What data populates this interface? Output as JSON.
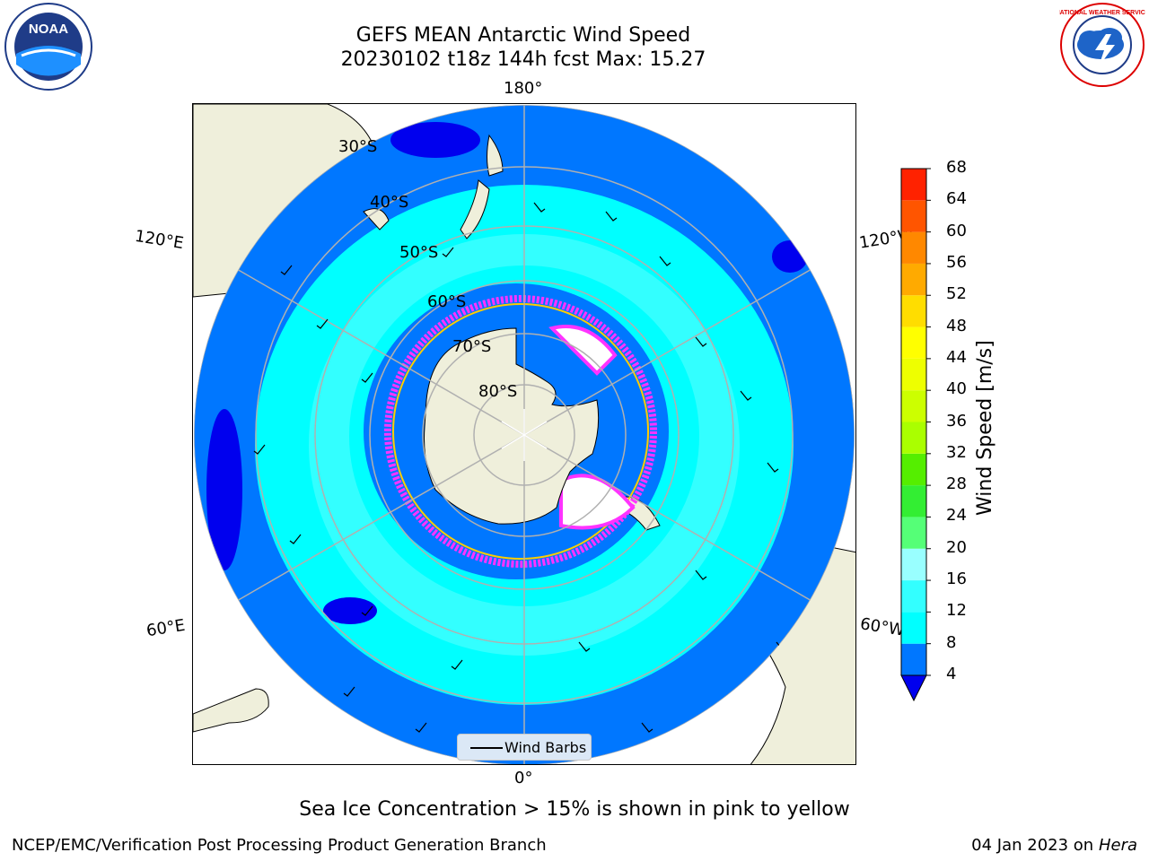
{
  "title": {
    "line1": "GEFS MEAN Antarctic Wind Speed",
    "line2": "20230102 t18z 144h fcst   Max: 15.27"
  },
  "logos": {
    "left": {
      "name": "noaa-logo",
      "text": "NOAA"
    },
    "right": {
      "name": "nws-logo",
      "text": "NATIONAL WEATHER SERVICE"
    }
  },
  "map": {
    "projection": "south-polar-stereographic",
    "longitude_labels": {
      "top": "180°",
      "bottom": "0°",
      "upper_left": "120°E",
      "upper_right": "120°W",
      "lower_left": "60°E",
      "lower_right": "60°W"
    },
    "latitude_labels": [
      "30°S",
      "40°S",
      "50°S",
      "60°S",
      "70°S",
      "80°S"
    ],
    "colors": {
      "land": "#efefdb",
      "ocean_4_8": "#0077ff",
      "ocean_8_12": "#00ffff",
      "ocean_12_16": "#33ffff",
      "ocean_lt_4": "#0000ee",
      "sea_ice_edge": "#ff33ff",
      "grid": "#b0b0b0"
    },
    "legend_label": "Wind Barbs"
  },
  "colorbar": {
    "label": "Wind Speed [m/s]",
    "ticks": [
      "4",
      "8",
      "12",
      "16",
      "20",
      "24",
      "28",
      "32",
      "36",
      "40",
      "44",
      "48",
      "52",
      "56",
      "60",
      "64",
      "68"
    ],
    "colors": [
      "#0077ff",
      "#00ffff",
      "#33ffff",
      "#99ffff",
      "#55ff77",
      "#33ee33",
      "#55ee00",
      "#aaff00",
      "#ccff00",
      "#eeff00",
      "#ffff00",
      "#ffdd00",
      "#ffaa00",
      "#ff8800",
      "#ff5500",
      "#ff2200"
    ],
    "extend_color": "#0000ee"
  },
  "caption": "Sea Ice Concentration > 15% is shown in pink to yellow",
  "footer": {
    "left": "NCEP/EMC/Verification Post Processing Product Generation Branch",
    "right_prefix": "04 Jan 2023 on ",
    "right_machine": "Hera"
  }
}
